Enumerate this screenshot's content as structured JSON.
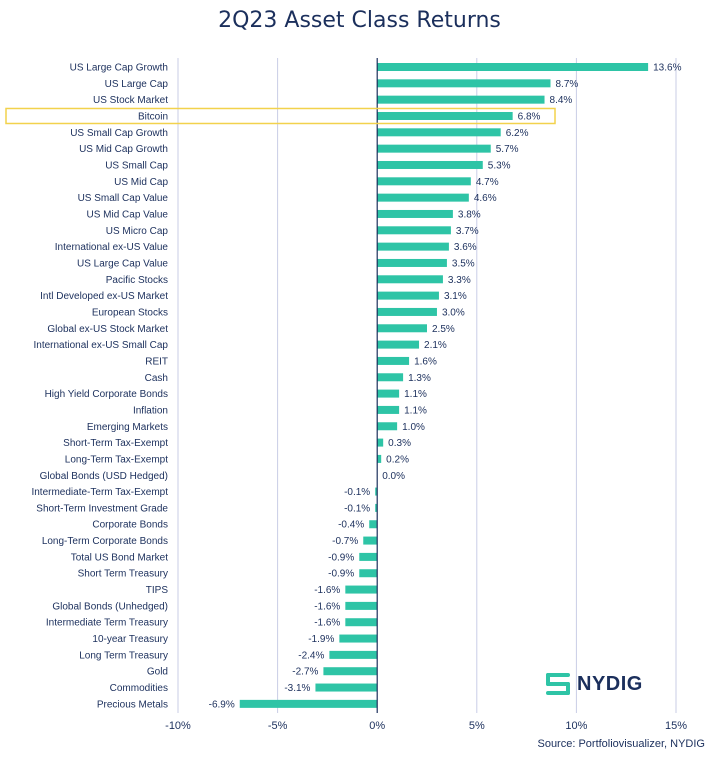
{
  "chart_data": {
    "type": "bar",
    "orientation": "horizontal",
    "title": "2Q23 Asset Class Returns",
    "xlim": [
      -10,
      15
    ],
    "x_ticks": [
      -10,
      -5,
      0,
      5,
      10,
      15
    ],
    "x_tick_labels": [
      "-10%",
      "-5%",
      "0%",
      "5%",
      "10%",
      "15%"
    ],
    "grid": "vertical",
    "bar_color": "#2ec4a6",
    "highlight_color": "#f2d24c",
    "highlighted_category": "Bitcoin",
    "categories": [
      "US Large Cap Growth",
      "US Large Cap",
      "US Stock Market",
      "Bitcoin",
      "US Small Cap Growth",
      "US Mid Cap Growth",
      "US Small Cap",
      "US Mid Cap",
      "US Small Cap Value",
      "US Mid Cap Value",
      "US Micro Cap",
      "International ex-US Value",
      "US Large Cap Value",
      "Pacific Stocks",
      "Intl Developed ex-US Market",
      "European Stocks",
      "Global ex-US Stock Market",
      "International ex-US Small Cap",
      "REIT",
      "Cash",
      "High Yield Corporate Bonds",
      "Inflation",
      "Emerging Markets",
      "Short-Term Tax-Exempt",
      "Long-Term Tax-Exempt",
      "Global Bonds (USD Hedged)",
      "Intermediate-Term Tax-Exempt",
      "Short-Term Investment Grade",
      "Corporate Bonds",
      "Long-Term Corporate Bonds",
      "Total US Bond Market",
      "Short Term Treasury",
      "TIPS",
      "Global Bonds (Unhedged)",
      "Intermediate Term Treasury",
      "10-year Treasury",
      "Long Term Treasury",
      "Gold",
      "Commodities",
      "Precious Metals"
    ],
    "values": [
      13.6,
      8.7,
      8.4,
      6.8,
      6.2,
      5.7,
      5.3,
      4.7,
      4.6,
      3.8,
      3.7,
      3.6,
      3.5,
      3.3,
      3.1,
      3.0,
      2.5,
      2.1,
      1.6,
      1.3,
      1.1,
      1.1,
      1.0,
      0.3,
      0.2,
      0.0,
      -0.1,
      -0.1,
      -0.4,
      -0.7,
      -0.9,
      -0.9,
      -1.6,
      -1.6,
      -1.6,
      -1.9,
      -2.4,
      -2.7,
      -3.1,
      -6.9
    ],
    "value_labels": [
      "13.6%",
      "8.7%",
      "8.4%",
      "6.8%",
      "6.2%",
      "5.7%",
      "5.3%",
      "4.7%",
      "4.6%",
      "3.8%",
      "3.7%",
      "3.6%",
      "3.5%",
      "3.3%",
      "3.1%",
      "3.0%",
      "2.5%",
      "2.1%",
      "1.6%",
      "1.3%",
      "1.1%",
      "1.1%",
      "1.0%",
      "0.3%",
      "0.2%",
      "0.0%",
      "-0.1%",
      "-0.1%",
      "-0.4%",
      "-0.7%",
      "-0.9%",
      "-0.9%",
      "-1.6%",
      "-1.6%",
      "-1.6%",
      "-1.9%",
      "-2.4%",
      "-2.7%",
      "-3.1%",
      "-6.9%"
    ]
  },
  "source": "Source: Portfoliovisualizer, NYDIG",
  "logo": {
    "text": "NYDIG",
    "icon": "nydig-logo-icon",
    "color": "#1b2f5c"
  }
}
